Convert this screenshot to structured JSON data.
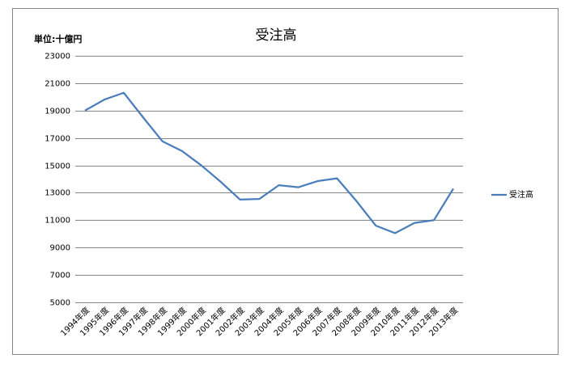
{
  "chart_data": {
    "type": "line",
    "title": "受注高",
    "unit_label": "単位:十億円",
    "categories": [
      "1994年度",
      "1995年度",
      "1996年度",
      "1997年度",
      "1998年度",
      "1999年度",
      "2000年度",
      "2001年度",
      "2002年度",
      "2003年度",
      "2004年度",
      "2005年度",
      "2006年度",
      "2007年度",
      "2008年度",
      "2009年度",
      "2010年度",
      "2011年度",
      "2012年度",
      "2013年度"
    ],
    "series": [
      {
        "name": "受注高",
        "color": "#4a7ebb",
        "values": [
          19000,
          19800,
          20300,
          18500,
          16750,
          16050,
          15000,
          13800,
          12500,
          12550,
          13550,
          13400,
          13850,
          14050,
          12400,
          10600,
          10050,
          10800,
          11000,
          13300
        ]
      }
    ],
    "ylim": [
      5000,
      23000
    ],
    "yticks": [
      5000,
      7000,
      9000,
      11000,
      13000,
      15000,
      17000,
      19000,
      21000,
      23000
    ],
    "grid": true,
    "legend": "right"
  }
}
